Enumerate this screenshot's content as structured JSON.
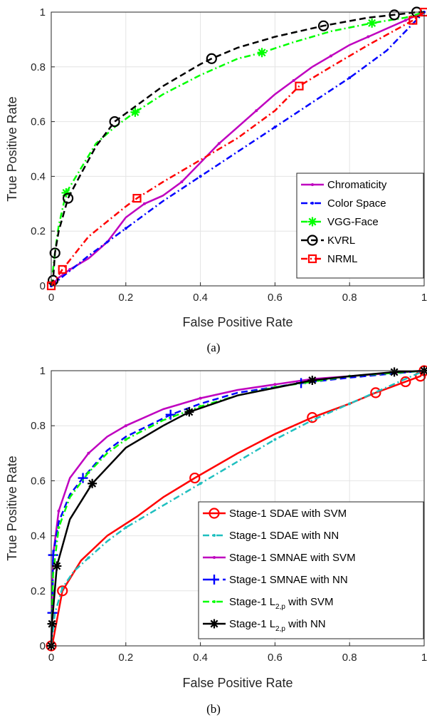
{
  "chart_data": [
    {
      "type": "line",
      "caption": "(a)",
      "xlabel": "False Positive Rate",
      "ylabel": "True Positive Rate",
      "xlim": [
        0,
        1
      ],
      "ylim": [
        0,
        1
      ],
      "xticks": [
        "0",
        "0.2",
        "0.4",
        "0.6",
        "0.8",
        "1"
      ],
      "yticks": [
        "0",
        "0.2",
        "0.4",
        "0.6",
        "0.8",
        "1"
      ],
      "grid": true,
      "legend_position": "bottom-right",
      "series": [
        {
          "name": "Chromaticity",
          "color": "#bf00bf",
          "dash": "solid",
          "marker": "dot",
          "x": [
            0,
            0.02,
            0.05,
            0.1,
            0.15,
            0.2,
            0.25,
            0.3,
            0.35,
            0.4,
            0.45,
            0.5,
            0.55,
            0.6,
            0.65,
            0.7,
            0.75,
            0.8,
            0.85,
            0.9,
            0.95,
            1
          ],
          "y": [
            0,
            0.03,
            0.06,
            0.1,
            0.16,
            0.25,
            0.3,
            0.33,
            0.38,
            0.45,
            0.52,
            0.58,
            0.64,
            0.7,
            0.75,
            0.8,
            0.84,
            0.88,
            0.91,
            0.94,
            0.97,
            1
          ]
        },
        {
          "name": "Color Space",
          "color": "#0000ff",
          "dash": "dashdot",
          "marker": "dot",
          "x": [
            0,
            0.1,
            0.2,
            0.3,
            0.4,
            0.5,
            0.6,
            0.7,
            0.8,
            0.9,
            1
          ],
          "y": [
            0,
            0.11,
            0.21,
            0.31,
            0.4,
            0.49,
            0.58,
            0.67,
            0.76,
            0.86,
            1
          ]
        },
        {
          "name": "VGG-Face",
          "color": "#00ff00",
          "dash": "dashdot",
          "marker": "star",
          "x": [
            0,
            0.01,
            0.02,
            0.04,
            0.08,
            0.12,
            0.17,
            0.22,
            0.3,
            0.4,
            0.5,
            0.56,
            0.65,
            0.75,
            0.86,
            0.95,
            1
          ],
          "y": [
            0,
            0.12,
            0.22,
            0.34,
            0.43,
            0.52,
            0.58,
            0.63,
            0.7,
            0.77,
            0.83,
            0.85,
            0.89,
            0.93,
            0.96,
            0.98,
            1
          ],
          "markers_x": [
            0.04,
            0.225,
            0.565,
            0.86
          ]
        },
        {
          "name": "KVRL",
          "color": "#000000",
          "dash": "dashed",
          "marker": "circle",
          "x": [
            0,
            0.005,
            0.01,
            0.02,
            0.045,
            0.08,
            0.12,
            0.17,
            0.22,
            0.3,
            0.4,
            0.43,
            0.5,
            0.6,
            0.73,
            0.85,
            0.92,
            0.98,
            1
          ],
          "y": [
            0,
            0.02,
            0.12,
            0.2,
            0.32,
            0.41,
            0.51,
            0.6,
            0.65,
            0.73,
            0.81,
            0.83,
            0.87,
            0.91,
            0.95,
            0.98,
            0.99,
            1,
            1
          ],
          "markers_x": [
            0.005,
            0.01,
            0.045,
            0.17,
            0.43,
            0.73,
            0.92,
            0.98
          ]
        },
        {
          "name": "NRML",
          "color": "#ff0000",
          "dash": "dashdot",
          "marker": "square",
          "x": [
            0,
            0.03,
            0.1,
            0.2,
            0.23,
            0.3,
            0.4,
            0.5,
            0.6,
            0.665,
            0.75,
            0.85,
            0.97,
            1
          ],
          "y": [
            0,
            0.06,
            0.18,
            0.29,
            0.32,
            0.38,
            0.46,
            0.54,
            0.64,
            0.73,
            0.8,
            0.88,
            0.97,
            1
          ],
          "markers_x": [
            0,
            0.03,
            0.23,
            0.665,
            0.97,
            1
          ]
        }
      ]
    },
    {
      "type": "line",
      "caption": "(b)",
      "xlabel": "False Positive Rate",
      "ylabel": "True Positive Rate",
      "xlim": [
        0,
        1
      ],
      "ylim": [
        0,
        1
      ],
      "xticks": [
        "0",
        "0.2",
        "0.4",
        "0.6",
        "0.8",
        "1"
      ],
      "yticks": [
        "0",
        "0.2",
        "0.4",
        "0.6",
        "0.8",
        "1"
      ],
      "grid": true,
      "legend_position": "bottom-right",
      "series": [
        {
          "name": "Stage-1 SDAE with SVM",
          "name_parts": [
            "Stage-1 SDAE with SVM"
          ],
          "color": "#ff0000",
          "dash": "solid",
          "marker": "circle",
          "x": [
            0,
            0.005,
            0.03,
            0.08,
            0.15,
            0.23,
            0.3,
            0.385,
            0.5,
            0.6,
            0.7,
            0.8,
            0.87,
            0.95,
            0.99,
            1
          ],
          "y": [
            0,
            0.02,
            0.2,
            0.31,
            0.4,
            0.47,
            0.54,
            0.61,
            0.7,
            0.77,
            0.83,
            0.88,
            0.92,
            0.96,
            0.98,
            1
          ],
          "markers_x": [
            0,
            0.03,
            0.385,
            0.7,
            0.87,
            0.95,
            0.99,
            1
          ]
        },
        {
          "name": "Stage-1 SDAE with NN",
          "name_parts": [
            "Stage-1 SDAE with NN"
          ],
          "color": "#1fbfbf",
          "dash": "dashdot",
          "marker": "dot",
          "x": [
            0,
            0.01,
            0.03,
            0.06,
            0.1,
            0.15,
            0.2,
            0.3,
            0.4,
            0.5,
            0.6,
            0.7,
            0.8,
            0.9,
            1
          ],
          "y": [
            0,
            0.12,
            0.21,
            0.27,
            0.32,
            0.38,
            0.43,
            0.51,
            0.59,
            0.67,
            0.75,
            0.82,
            0.88,
            0.94,
            1
          ]
        },
        {
          "name": "Stage-1 SMNAE with SVM",
          "name_parts": [
            "Stage-1 SMNAE with SVM"
          ],
          "color": "#bf00bf",
          "dash": "solid",
          "marker": "dot",
          "x": [
            0,
            0.005,
            0.02,
            0.05,
            0.1,
            0.15,
            0.2,
            0.3,
            0.4,
            0.5,
            0.6,
            0.7,
            0.8,
            0.9,
            1
          ],
          "y": [
            0,
            0.33,
            0.49,
            0.61,
            0.7,
            0.76,
            0.8,
            0.86,
            0.9,
            0.93,
            0.95,
            0.97,
            0.98,
            0.99,
            1
          ]
        },
        {
          "name": "Stage-1 SMNAE with NN",
          "name_parts": [
            "Stage-1 SMNAE with NN"
          ],
          "color": "#0000ff",
          "dash": "dashed",
          "marker": "plus",
          "x": [
            0,
            0.003,
            0.005,
            0.02,
            0.05,
            0.085,
            0.15,
            0.2,
            0.32,
            0.4,
            0.5,
            0.67,
            0.8,
            0.92,
            1
          ],
          "y": [
            0,
            0.12,
            0.33,
            0.45,
            0.55,
            0.61,
            0.71,
            0.76,
            0.84,
            0.88,
            0.92,
            0.955,
            0.975,
            0.99,
            1
          ],
          "markers_x": [
            0.003,
            0.005,
            0.085,
            0.32,
            0.67
          ]
        },
        {
          "name": "Stage-1 L2,p with SVM",
          "name_parts": [
            "Stage-1 L",
            "2,p",
            " with SVM"
          ],
          "color": "#00ff00",
          "dash": "dashdot",
          "marker": "dot",
          "x": [
            0,
            0.005,
            0.02,
            0.05,
            0.1,
            0.15,
            0.2,
            0.3,
            0.4,
            0.5,
            0.6,
            0.7,
            0.8,
            0.9,
            1
          ],
          "y": [
            0,
            0.26,
            0.43,
            0.54,
            0.63,
            0.7,
            0.75,
            0.82,
            0.87,
            0.91,
            0.94,
            0.96,
            0.98,
            0.99,
            1
          ]
        },
        {
          "name": "Stage-1 L2,p with NN",
          "name_parts": [
            "Stage-1 L",
            "2,p",
            " with NN"
          ],
          "color": "#000000",
          "dash": "solid",
          "marker": "asterisk",
          "x": [
            0,
            0.002,
            0.015,
            0.05,
            0.11,
            0.2,
            0.3,
            0.37,
            0.5,
            0.7,
            0.8,
            0.92,
            1
          ],
          "y": [
            0,
            0.08,
            0.29,
            0.46,
            0.59,
            0.72,
            0.8,
            0.85,
            0.91,
            0.965,
            0.98,
            0.995,
            1
          ],
          "markers_x": [
            0,
            0.002,
            0.015,
            0.11,
            0.37,
            0.7,
            0.92,
            1
          ]
        }
      ]
    }
  ]
}
